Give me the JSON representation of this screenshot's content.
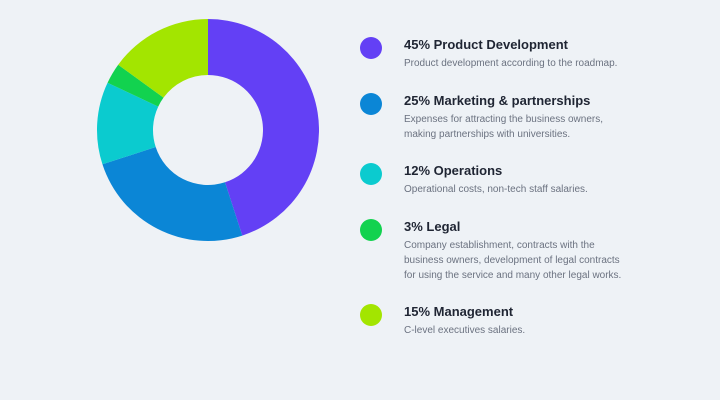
{
  "chart_data": {
    "type": "pie",
    "categories": [
      "Product Development",
      "Marketing & partnerships",
      "Operations",
      "Legal",
      "Management"
    ],
    "values": [
      45,
      25,
      12,
      3,
      15
    ],
    "colors": [
      "#6340f5",
      "#0b86d6",
      "#0bcbcf",
      "#12d24f",
      "#a3e500"
    ],
    "donut": true
  },
  "legend": {
    "items": [
      {
        "title": "45% Product Development",
        "desc": "Product development according to the roadmap.",
        "color": "#6340f5"
      },
      {
        "title": "25% Marketing & partnerships",
        "desc": "Expenses for attracting the business owners, making partnerships with universities.",
        "color": "#0b86d6"
      },
      {
        "title": "12% Operations",
        "desc": "Operational costs, non-tech staff salaries.",
        "color": "#0bcbcf"
      },
      {
        "title": "3% Legal",
        "desc": "Company establishment, contracts with the business owners, development of legal contracts for using the service and many other legal works.",
        "color": "#12d24f"
      },
      {
        "title": "15% Management",
        "desc": "C-level executives salaries.",
        "color": "#a3e500"
      }
    ]
  }
}
